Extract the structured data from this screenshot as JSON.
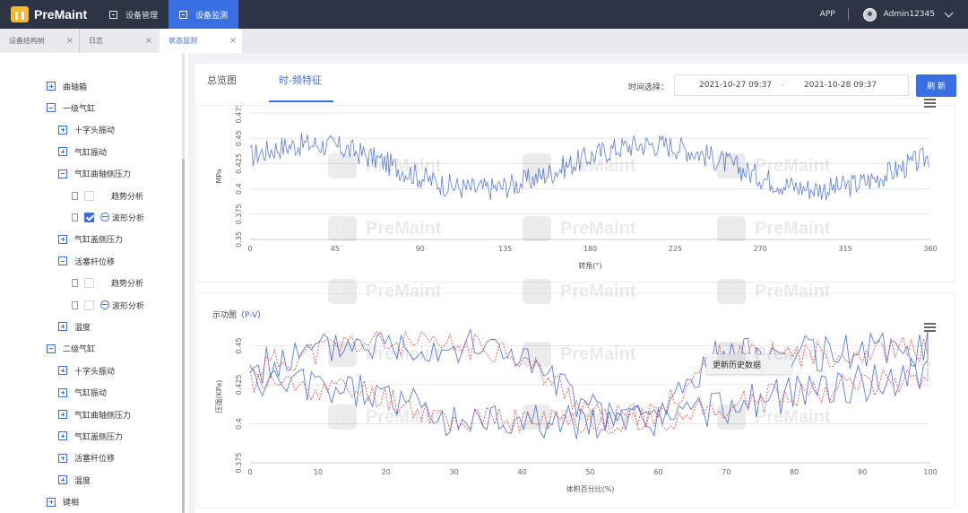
{
  "header": {
    "brand": "PreMaint",
    "nav": [
      {
        "label": "设备管理",
        "icon": "device-icon",
        "active": false
      },
      {
        "label": "设备监测",
        "icon": "monitor-icon",
        "active": true
      }
    ],
    "app_label": "APP",
    "username": "Admin12345"
  },
  "page_tabs": [
    {
      "label": "设备结构树",
      "active": false
    },
    {
      "label": "日志",
      "active": false
    },
    {
      "label": "状态监测",
      "active": true
    }
  ],
  "tree": [
    {
      "label": "曲轴箱",
      "kind": "expander",
      "state": "plus",
      "level": 0
    },
    {
      "label": "一级气缸",
      "kind": "expander",
      "state": "minus",
      "level": 0
    },
    {
      "label": "十字头振动",
      "kind": "expander",
      "state": "plus",
      "level": 1
    },
    {
      "label": "气缸振动",
      "kind": "expander",
      "state": "plus",
      "level": 1
    },
    {
      "label": "气缸曲轴侧压力",
      "kind": "expander",
      "state": "minus",
      "level": 1
    },
    {
      "label": "趋势分析",
      "kind": "leaf",
      "checked": false,
      "wave": false,
      "level": 2
    },
    {
      "label": "波形分析",
      "kind": "leaf",
      "checked": true,
      "wave": true,
      "level": 2
    },
    {
      "label": "气缸盖侧压力",
      "kind": "expander",
      "state": "plus",
      "level": 1
    },
    {
      "label": "活塞杆位移",
      "kind": "expander",
      "state": "minus",
      "level": 1
    },
    {
      "label": "趋势分析",
      "kind": "leaf",
      "checked": false,
      "wave": false,
      "level": 2
    },
    {
      "label": "波形分析",
      "kind": "leaf",
      "checked": false,
      "wave": true,
      "level": 2
    },
    {
      "label": "温度",
      "kind": "expander",
      "state": "plus",
      "level": 1
    },
    {
      "label": "二级气缸",
      "kind": "expander",
      "state": "minus",
      "level": 0
    },
    {
      "label": "十字头振动",
      "kind": "expander",
      "state": "plus",
      "level": 1
    },
    {
      "label": "气缸振动",
      "kind": "expander",
      "state": "plus",
      "level": 1
    },
    {
      "label": "气缸曲轴侧压力",
      "kind": "expander",
      "state": "plus",
      "level": 1
    },
    {
      "label": "气缸盖侧压力",
      "kind": "expander",
      "state": "plus",
      "level": 1
    },
    {
      "label": "活塞杆位移",
      "kind": "expander",
      "state": "plus",
      "level": 1
    },
    {
      "label": "温度",
      "kind": "expander",
      "state": "plus",
      "level": 1
    },
    {
      "label": "键相",
      "kind": "expander",
      "state": "plus",
      "level": 0
    }
  ],
  "main": {
    "tabs": [
      {
        "label": "总览图",
        "active": false
      },
      {
        "label": "时-频特征",
        "active": true
      }
    ],
    "time_label": "时间选择：",
    "date_start": "2021-10-27 09:37",
    "date_sep": "-",
    "date_end": "2021-10-28 09:37",
    "refresh_label": "刷 新",
    "context_menu_item": "更新历史数据",
    "watermark_text": "PreMaint",
    "pv_title_prefix": "示功图（",
    "pv_title_highlight": "P-V",
    "pv_title_suffix": "）"
  },
  "chart_data": [
    {
      "type": "line",
      "title": "",
      "xlabel": "转角(°)",
      "ylabel": "MPa",
      "xlim": [
        0,
        360
      ],
      "ylim": [
        0.35,
        0.475
      ],
      "xticks": [
        "0",
        "45",
        "90",
        "135",
        "180",
        "225",
        "270",
        "315",
        "360"
      ],
      "yticks": [
        "0.35",
        "0.375",
        "0.4",
        "0.425",
        "0.45",
        "0.475"
      ],
      "series_color": "#5b7ed6",
      "trend": {
        "mean": 0.422,
        "amplitude": 0.022,
        "cycles": 2,
        "phase_deg": 0,
        "noise": 0.012
      },
      "grid": true
    },
    {
      "type": "line",
      "title": "示功图（P-V）",
      "xlabel": "体积百分比(%)",
      "ylabel": "压强(KPa)",
      "xlim": [
        0,
        100
      ],
      "ylim": [
        0.375,
        0.46
      ],
      "xticks": [
        "0",
        "10",
        "20",
        "30",
        "40",
        "50",
        "60",
        "70",
        "80",
        "90",
        "100"
      ],
      "yticks": [
        "0.375",
        "0.4",
        "0.425",
        "0.45"
      ],
      "series_colors": [
        "#5b7ed6",
        "#e05a5a"
      ],
      "grid": true
    }
  ]
}
